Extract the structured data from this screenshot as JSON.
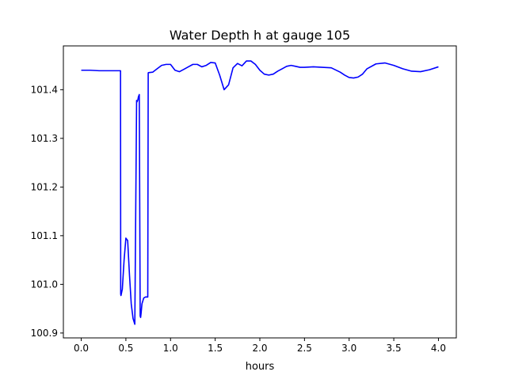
{
  "chart_data": {
    "type": "line",
    "title": "Water Depth h at gauge 105",
    "xlabel": "hours",
    "ylabel": "",
    "xlim": [
      -0.2,
      4.2
    ],
    "ylim": [
      100.89,
      101.49
    ],
    "xticks": [
      0.0,
      0.5,
      1.0,
      1.5,
      2.0,
      2.5,
      3.0,
      3.5,
      4.0
    ],
    "xtick_labels": [
      "0.0",
      "0.5",
      "1.0",
      "1.5",
      "2.0",
      "2.5",
      "3.0",
      "3.5",
      "4.0"
    ],
    "yticks": [
      100.9,
      101.0,
      101.1,
      101.2,
      101.3,
      101.4
    ],
    "ytick_labels": [
      "100.9",
      "101.0",
      "101.1",
      "101.2",
      "101.3",
      "101.4"
    ],
    "grid": false,
    "series": [
      {
        "color": "#0000ff",
        "x": [
          0.0,
          0.1,
          0.2,
          0.3,
          0.44,
          0.442,
          0.445,
          0.46,
          0.48,
          0.5,
          0.52,
          0.54,
          0.56,
          0.58,
          0.6,
          0.62,
          0.625,
          0.63,
          0.635,
          0.64,
          0.65,
          0.66,
          0.665,
          0.67,
          0.68,
          0.7,
          0.72,
          0.745,
          0.75,
          0.752,
          0.8,
          0.85,
          0.9,
          0.95,
          1.0,
          1.05,
          1.1,
          1.15,
          1.2,
          1.25,
          1.3,
          1.35,
          1.4,
          1.45,
          1.5,
          1.55,
          1.6,
          1.65,
          1.7,
          1.75,
          1.8,
          1.85,
          1.9,
          1.95,
          2.0,
          2.05,
          2.1,
          2.15,
          2.2,
          2.25,
          2.3,
          2.35,
          2.4,
          2.45,
          2.5,
          2.6,
          2.7,
          2.8,
          2.9,
          2.95,
          3.0,
          3.05,
          3.1,
          3.15,
          3.2,
          3.3,
          3.4,
          3.5,
          3.6,
          3.7,
          3.8,
          3.9,
          4.0
        ],
        "y": [
          101.44,
          101.44,
          101.439,
          101.439,
          101.439,
          100.98,
          100.977,
          100.99,
          101.05,
          101.095,
          101.09,
          101.02,
          100.96,
          100.93,
          100.918,
          101.378,
          101.375,
          101.377,
          101.38,
          101.385,
          101.39,
          100.935,
          100.932,
          100.94,
          100.96,
          100.972,
          100.974,
          100.974,
          101.434,
          101.435,
          101.436,
          101.443,
          101.45,
          101.452,
          101.452,
          101.44,
          101.437,
          101.442,
          101.447,
          101.452,
          101.452,
          101.447,
          101.45,
          101.456,
          101.455,
          101.43,
          101.4,
          101.41,
          101.445,
          101.454,
          101.449,
          101.459,
          101.459,
          101.452,
          101.44,
          101.432,
          101.43,
          101.432,
          101.438,
          101.443,
          101.448,
          101.45,
          101.448,
          101.446,
          101.446,
          101.447,
          101.446,
          101.445,
          101.436,
          101.43,
          101.425,
          101.424,
          101.426,
          101.432,
          101.443,
          101.453,
          101.455,
          101.45,
          101.443,
          101.438,
          101.437,
          101.441,
          101.447
        ]
      }
    ]
  }
}
